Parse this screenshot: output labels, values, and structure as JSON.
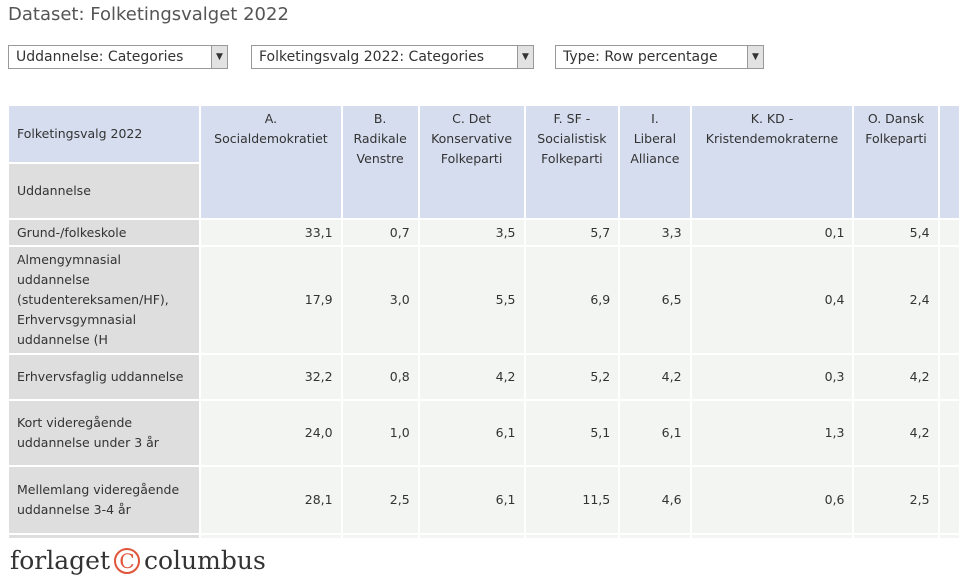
{
  "page_title": "Dataset: Folketingsvalget 2022",
  "selects": [
    {
      "value": "Uddannelse: Categories"
    },
    {
      "value": "Folketingsvalg 2022: Categories"
    },
    {
      "value": "Type: Row percentage"
    }
  ],
  "table": {
    "corner_col_label": "Folketingsvalg 2022",
    "corner_row_label": "Uddannelse",
    "columns": [
      "A. Socialdemokratiet",
      "B. Radikale Venstre",
      "C. Det Konservative Folkeparti",
      "F. SF - Socialistisk Folkeparti",
      "I. Liberal Alliance",
      "K. KD - Kristendemokraterne",
      "O. Dansk Folkeparti"
    ],
    "rows": [
      {
        "label": "Grund-/folkeskole",
        "values": [
          "33,1",
          "0,7",
          "3,5",
          "5,7",
          "3,3",
          "0,1",
          "5,4"
        ]
      },
      {
        "label": "Almengymnasial uddannelse (studentereksamen/HF), Erhvervsgymnasial uddannelse (H",
        "values": [
          "17,9",
          "3,0",
          "5,5",
          "6,9",
          "6,5",
          "0,4",
          "2,4"
        ]
      },
      {
        "label": "Erhvervsfaglig uddannelse",
        "values": [
          "32,2",
          "0,8",
          "4,2",
          "5,2",
          "4,2",
          "0,3",
          "4,2"
        ]
      },
      {
        "label": "Kort videregående uddannelse under 3 år",
        "values": [
          "24,0",
          "1,0",
          "6,1",
          "5,1",
          "6,1",
          "1,3",
          "4,2"
        ]
      },
      {
        "label": "Mellemlang videregående uddannelse 3-4 år",
        "values": [
          "28,1",
          "2,5",
          "6,1",
          "11,5",
          "4,6",
          "0,6",
          "2,5"
        ]
      }
    ]
  },
  "logo": {
    "left": "forlaget",
    "symbol": "C",
    "right": "columbus"
  },
  "colors": {
    "header_bg": "#d6ddef",
    "row_label_bg": "#dedede",
    "cell_bg": "#f3f5f2",
    "logo_accent": "#e0553a"
  }
}
